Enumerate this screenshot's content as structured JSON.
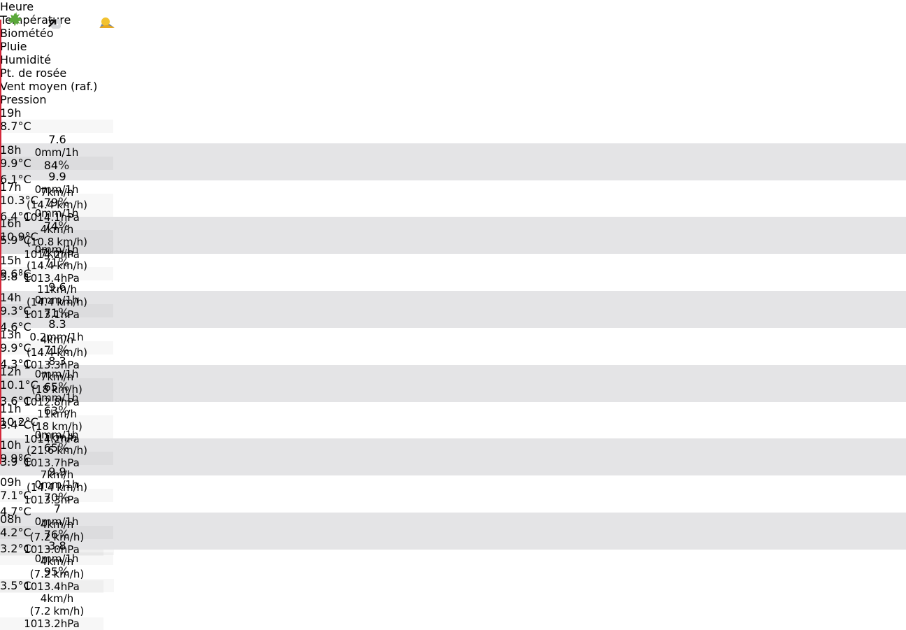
{
  "header": [
    "Heure",
    "Température",
    "Biométéo",
    "Pluie",
    "Humidité",
    "Pt. de rosée",
    "Vent moyen (raf.)",
    "Pression"
  ],
  "units": {
    "temp": "°C",
    "rain": "mm/1h",
    "humidity": "%",
    "wind": "km/h",
    "pressure": "hPa",
    "open": "(",
    "close": ")"
  },
  "rows": [
    {
      "hour": "19h",
      "icon": "sun-cloud",
      "temp": 8.7,
      "bio": 7.6,
      "rain": 0,
      "rain_icon": true,
      "humidity": 84,
      "dew": 6.1,
      "wind": 7,
      "gust": 14.4,
      "pressure": 1014.1,
      "trend": "up",
      "bars": [
        "#6aae3c",
        "#5da838",
        "#2090c8",
        "#5aa83a",
        "#b6d470"
      ]
    },
    {
      "hour": "18h",
      "temp": 9.9,
      "bio": 9.9,
      "rain": 0,
      "rain_icon": false,
      "humidity": 79,
      "dew": 6.4,
      "wind": 4,
      "gust": 10.8,
      "pressure": 1014.2,
      "trend": "up",
      "bars": [
        "#c9dc72",
        "#c9dc72",
        "#2a9ccc",
        "#5aa83a",
        "#b6d470"
      ]
    },
    {
      "hour": "17h",
      "temp": 10.3,
      "bio": null,
      "rain": 0,
      "rain_icon": false,
      "humidity": 74,
      "dew": 5.9,
      "wind": 7,
      "gust": 14.4,
      "pressure": 1013.4,
      "trend": "up",
      "bars": [
        "#c9dc72",
        null,
        "#34a4c8",
        "#5aa83a",
        "#6aae3c"
      ]
    },
    {
      "hour": "16h",
      "temp": 10.9,
      "bio": null,
      "rain": 0,
      "rain_icon": true,
      "humidity": 71,
      "dew": 5.8,
      "wind": 11,
      "gust": 14.4,
      "pressure": 1013.1,
      "trend": "down",
      "bars": [
        "#c9dc72",
        null,
        "#3aa8c4",
        "#5aa83a",
        "#6aae3c"
      ]
    },
    {
      "hour": "15h",
      "temp": 9.6,
      "bio": 9.6,
      "rain": 0,
      "rain_icon": false,
      "humidity": 71,
      "dew": 4.6,
      "wind": 4,
      "gust": 14.4,
      "pressure": 1013.3,
      "trend": "down",
      "bars": [
        "#b6d470",
        "#b6d470",
        "#3aa8c4",
        "#5aa83a",
        "#6aae3c"
      ]
    },
    {
      "hour": "14h",
      "temp": 9.3,
      "bio": 8.3,
      "rain": 0.2,
      "rain_icon": false,
      "humidity": 71,
      "dew": 4.3,
      "wind": 7,
      "gust": 18,
      "pressure": 1012.8,
      "trend": "down",
      "bars": [
        "#b6d470",
        "#7cb844",
        "#3aa8c4",
        "#5aa83a",
        "#6aae3c"
      ]
    },
    {
      "hour": "13h",
      "temp": 9.9,
      "bio": 8.3,
      "rain": 0,
      "rain_icon": true,
      "humidity": 65,
      "dew": 3.6,
      "wind": 11,
      "gust": 18,
      "pressure": 1014.2,
      "trend": "up",
      "bars": [
        "#c9dc72",
        "#7cb844",
        "#4ab2c0",
        "#5aa83a",
        "#b6d470"
      ]
    },
    {
      "hour": "12h",
      "temp": 10.1,
      "bio": null,
      "rain": 0,
      "rain_icon": false,
      "humidity": 63,
      "dew": 3.4,
      "wind": 11,
      "gust": 21.6,
      "pressure": 1013.7,
      "trend": "up",
      "bars": [
        "#d4e07c",
        null,
        "#52b6bc",
        "#5aa83a",
        "#6aae3c"
      ]
    },
    {
      "hour": "11h",
      "temp": 10.2,
      "bio": null,
      "rain": 0,
      "rain_icon": false,
      "humidity": 65,
      "dew": 3.9,
      "wind": 7,
      "gust": 14.4,
      "pressure": 1013.3,
      "trend": "up",
      "bars": [
        "#d4e07c",
        null,
        "#4ab2c0",
        "#5aa83a",
        "#6aae3c"
      ]
    },
    {
      "hour": "10h",
      "temp": 9.9,
      "bio": 9.9,
      "rain": 0,
      "rain_icon": true,
      "humidity": 70,
      "dew": 4.7,
      "wind": 4,
      "gust": 7.2,
      "pressure": "1013.0",
      "trend": "up",
      "bars": [
        "#c9dc72",
        "#c9dc72",
        "#3aa8c4",
        "#5aa83a",
        "#6aae3c"
      ]
    },
    {
      "hour": "09h",
      "temp": 7.1,
      "bio": 7,
      "rain": 0,
      "rain_icon": false,
      "humidity": 76,
      "dew": 3.2,
      "wind": 4,
      "gust": 7.2,
      "pressure": 1013.4,
      "trend": "up",
      "bars": [
        "#4e9e36",
        "#4e9e36",
        "#2a9ccc",
        "#5aa83a",
        "#6aae3c"
      ]
    },
    {
      "hour": "08h",
      "temp": 4.2,
      "bio": 3.8,
      "rain": 0,
      "rain_icon": false,
      "humidity": 95,
      "dew": 3.5,
      "wind": 4,
      "gust": 7.2,
      "pressure": 1013.2,
      "trend": "up",
      "bars": [
        "#3c9636",
        "#4e9e36",
        "#1478b8",
        "#5aa83a",
        "#6aae3c"
      ]
    }
  ]
}
